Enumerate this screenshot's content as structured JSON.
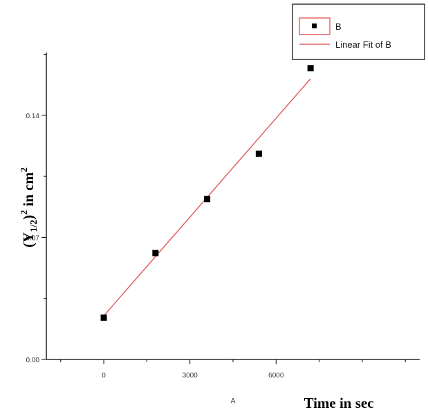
{
  "chart_data": {
    "type": "scatter",
    "title": "",
    "xlabel_letter": "A",
    "xlabel": "Time in sec",
    "ylabel": "(Y1/2)2 in cm2",
    "ylabel_parts": {
      "open": "(Y",
      "sub": "1/2",
      "close": ")",
      "sup": "2",
      "unit": " in cm",
      "unit_sup": "2"
    },
    "xlim": [
      -2000,
      11000
    ],
    "ylim": [
      0,
      0.176
    ],
    "x_ticks": [
      0,
      3000,
      6000
    ],
    "x_tick_labels": [
      "0",
      "3000",
      "6000"
    ],
    "y_ticks": [
      0,
      0.07,
      0.14
    ],
    "y_tick_labels": [
      "0.00",
      "0.07",
      "0.14"
    ],
    "grid": false,
    "legend_position": "top-right",
    "series": [
      {
        "name": "B",
        "x": [
          0,
          1800,
          3600,
          5400,
          7200
        ],
        "y": [
          0.024,
          0.061,
          0.092,
          0.118,
          0.167
        ],
        "color": "#000000",
        "marker": "square"
      },
      {
        "name": "Linear Fit of B",
        "x": [
          0,
          7200
        ],
        "y": [
          0.025,
          0.161
        ],
        "color": "#e06060",
        "style": "line"
      }
    ]
  }
}
